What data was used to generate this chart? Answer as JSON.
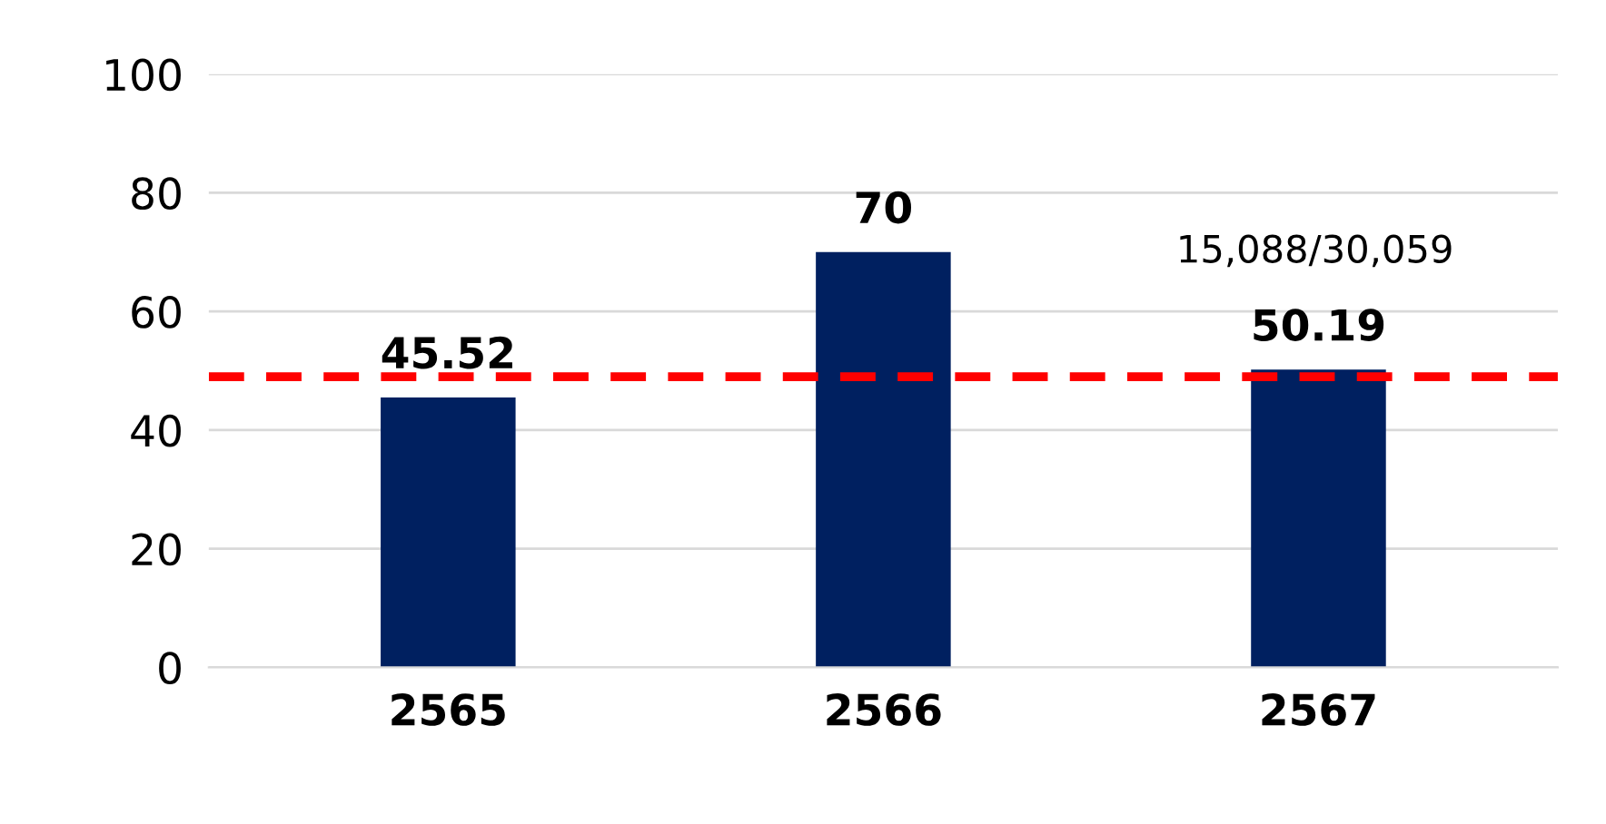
{
  "chart_data": {
    "type": "bar",
    "categories": [
      "2565",
      "2566",
      "2567"
    ],
    "values": [
      45.52,
      70,
      50.19
    ],
    "color": "#002060",
    "data_labels": true,
    "ylim": [
      0,
      100
    ],
    "yticks": [
      0,
      20,
      40,
      60,
      80,
      100
    ],
    "grid": "y",
    "ref_lines": [
      {
        "axis": "y",
        "value": 49,
        "color": "#ff0000",
        "line_style": "dashed"
      }
    ],
    "annotations": [
      "15,088/30,059"
    ]
  }
}
